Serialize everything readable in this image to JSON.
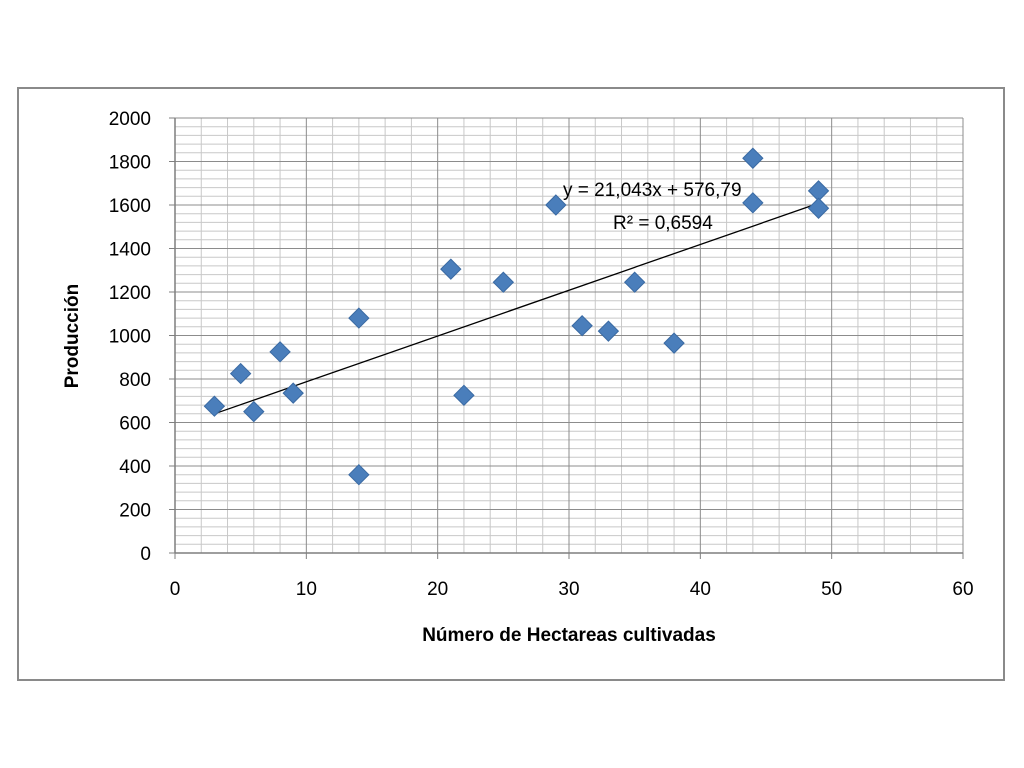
{
  "chart_data": {
    "type": "scatter",
    "title": "",
    "xlabel": "Número de Hectareas cultivadas",
    "ylabel": "Producción",
    "xlim": [
      0,
      60
    ],
    "ylim": [
      0,
      2000
    ],
    "x_ticks": [
      "0",
      "10",
      "20",
      "30",
      "40",
      "50",
      "60"
    ],
    "y_ticks": [
      "0",
      "200",
      "400",
      "600",
      "800",
      "1000",
      "1200",
      "1400",
      "1600",
      "1800",
      "2000"
    ],
    "grid": "on",
    "legend": "none",
    "series": [
      {
        "x": [
          3,
          5,
          6,
          8,
          9,
          14,
          14,
          21,
          22,
          25,
          29,
          31,
          33,
          35,
          38,
          44,
          44,
          49,
          49
        ],
        "y": [
          675,
          825,
          650,
          925,
          735,
          1080,
          360,
          1305,
          725,
          1245,
          1600,
          1045,
          1020,
          1245,
          965,
          1815,
          1610,
          1665,
          1585
        ]
      }
    ],
    "trendline": {
      "slope": 21.043,
      "intercept": 576.79,
      "x_range": [
        3,
        49
      ],
      "equation_label": "y = 21,043x + 576,79",
      "r2_label": "R² = 0,6594"
    },
    "colors": {
      "marker": "#4a7ebb",
      "trendline": "#000000",
      "grid_major": "#8c8c8c",
      "grid_minor": "#c8c8c8"
    }
  }
}
